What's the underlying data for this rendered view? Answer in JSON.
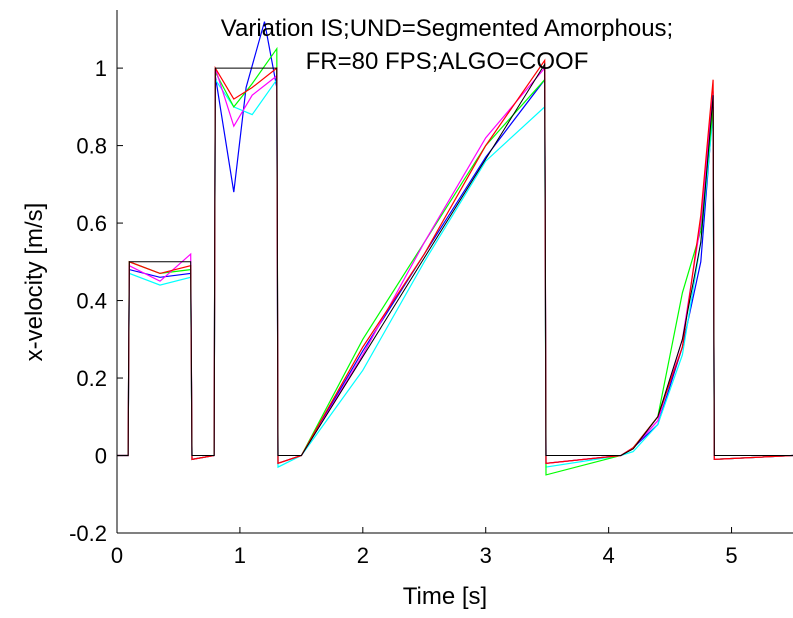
{
  "chart_data": {
    "type": "line",
    "title_lines": [
      "Variation IS;UND=Segmented Amorphous;",
      "FR=80 FPS;ALGO=COOF"
    ],
    "xlabel": "Time [s]",
    "ylabel": "x-velocity [m/s]",
    "xlim": [
      0,
      5.5
    ],
    "ylim": [
      -0.2,
      1.15
    ],
    "xticks": [
      0,
      1,
      2,
      3,
      4,
      5
    ],
    "yticks": [
      -0.2,
      0,
      0.2,
      0.4,
      0.6,
      0.8,
      1
    ],
    "xtick_labels": [
      "0",
      "1",
      "2",
      "3",
      "4",
      "5"
    ],
    "ytick_labels": [
      "-0.2",
      "0",
      "0.2",
      "0.4",
      "0.6",
      "0.8",
      "1"
    ],
    "grid": false,
    "legend": "none",
    "reference": {
      "color": "#000000",
      "x": [
        0,
        0.09,
        0.1,
        0.6,
        0.61,
        0.79,
        0.8,
        1.3,
        1.31,
        1.5,
        3.48,
        3.49,
        4.1,
        4.2,
        4.4,
        4.6,
        4.75,
        4.85,
        4.86,
        5.5
      ],
      "y": [
        0,
        0,
        0.5,
        0.5,
        0,
        0,
        1,
        1,
        0,
        0,
        1.01,
        0,
        0,
        0.017,
        0.1,
        0.3,
        0.55,
        0.93,
        0,
        0
      ]
    },
    "series": [
      {
        "color": "#0000ff",
        "x": [
          0,
          0.09,
          0.1,
          0.35,
          0.6,
          0.61,
          0.79,
          0.8,
          0.95,
          1.05,
          1.2,
          1.3,
          1.31,
          1.5,
          2.0,
          2.5,
          3.0,
          3.48,
          3.49,
          4.1,
          4.2,
          4.4,
          4.6,
          4.75,
          4.85,
          4.86,
          5.5
        ],
        "y": [
          0,
          0,
          0.48,
          0.46,
          0.47,
          -0.01,
          0,
          0.98,
          0.68,
          0.95,
          1.12,
          0.95,
          -0.02,
          0,
          0.27,
          0.52,
          0.77,
          0.97,
          -0.02,
          0,
          0.02,
          0.08,
          0.28,
          0.5,
          0.9,
          -0.01,
          0
        ]
      },
      {
        "color": "#00ffff",
        "x": [
          0,
          0.09,
          0.1,
          0.35,
          0.6,
          0.61,
          0.79,
          0.8,
          0.95,
          1.1,
          1.3,
          1.31,
          1.5,
          2.0,
          2.5,
          3.0,
          3.48,
          3.49,
          4.1,
          4.2,
          4.4,
          4.6,
          4.75,
          4.85,
          4.86,
          5.5
        ],
        "y": [
          0,
          0,
          0.47,
          0.44,
          0.46,
          -0.01,
          0,
          0.97,
          0.9,
          0.88,
          0.97,
          -0.03,
          0,
          0.22,
          0.5,
          0.76,
          0.9,
          -0.03,
          0,
          0.01,
          0.08,
          0.26,
          0.55,
          0.88,
          -0.01,
          0
        ]
      },
      {
        "color": "#00ff00",
        "x": [
          0,
          0.09,
          0.1,
          0.35,
          0.6,
          0.61,
          0.79,
          0.8,
          0.95,
          1.1,
          1.3,
          1.31,
          1.5,
          2.0,
          2.5,
          3.0,
          3.48,
          3.49,
          4.1,
          4.2,
          4.4,
          4.6,
          4.75,
          4.85,
          4.86,
          5.5
        ],
        "y": [
          0,
          0,
          0.5,
          0.47,
          0.48,
          -0.01,
          0,
          0.99,
          0.9,
          0.96,
          1.05,
          -0.02,
          0,
          0.3,
          0.55,
          0.8,
          0.97,
          -0.05,
          0,
          0.02,
          0.1,
          0.42,
          0.58,
          0.9,
          -0.01,
          0
        ]
      },
      {
        "color": "#ff00ff",
        "x": [
          0,
          0.09,
          0.1,
          0.35,
          0.6,
          0.61,
          0.79,
          0.8,
          0.95,
          1.1,
          1.3,
          1.31,
          1.5,
          2.0,
          2.5,
          3.0,
          3.48,
          3.49,
          4.1,
          4.2,
          4.4,
          4.6,
          4.75,
          4.85,
          4.86,
          5.5
        ],
        "y": [
          0,
          0,
          0.49,
          0.45,
          0.52,
          -0.01,
          0,
          1.0,
          0.85,
          0.93,
          0.98,
          -0.02,
          0,
          0.26,
          0.55,
          0.82,
          1.0,
          -0.02,
          0,
          0.02,
          0.09,
          0.3,
          0.6,
          0.94,
          -0.01,
          0
        ]
      },
      {
        "color": "#ff0000",
        "x": [
          0,
          0.09,
          0.1,
          0.35,
          0.6,
          0.61,
          0.79,
          0.8,
          0.95,
          1.1,
          1.3,
          1.31,
          1.5,
          2.0,
          2.5,
          3.0,
          3.48,
          3.49,
          4.1,
          4.2,
          4.4,
          4.6,
          4.75,
          4.85,
          4.86,
          5.5
        ],
        "y": [
          0,
          0,
          0.5,
          0.47,
          0.49,
          -0.01,
          0,
          1.0,
          0.92,
          0.95,
          1.0,
          -0.02,
          0,
          0.28,
          0.52,
          0.8,
          1.02,
          -0.02,
          0,
          0.02,
          0.1,
          0.28,
          0.62,
          0.97,
          -0.01,
          0
        ]
      }
    ]
  }
}
